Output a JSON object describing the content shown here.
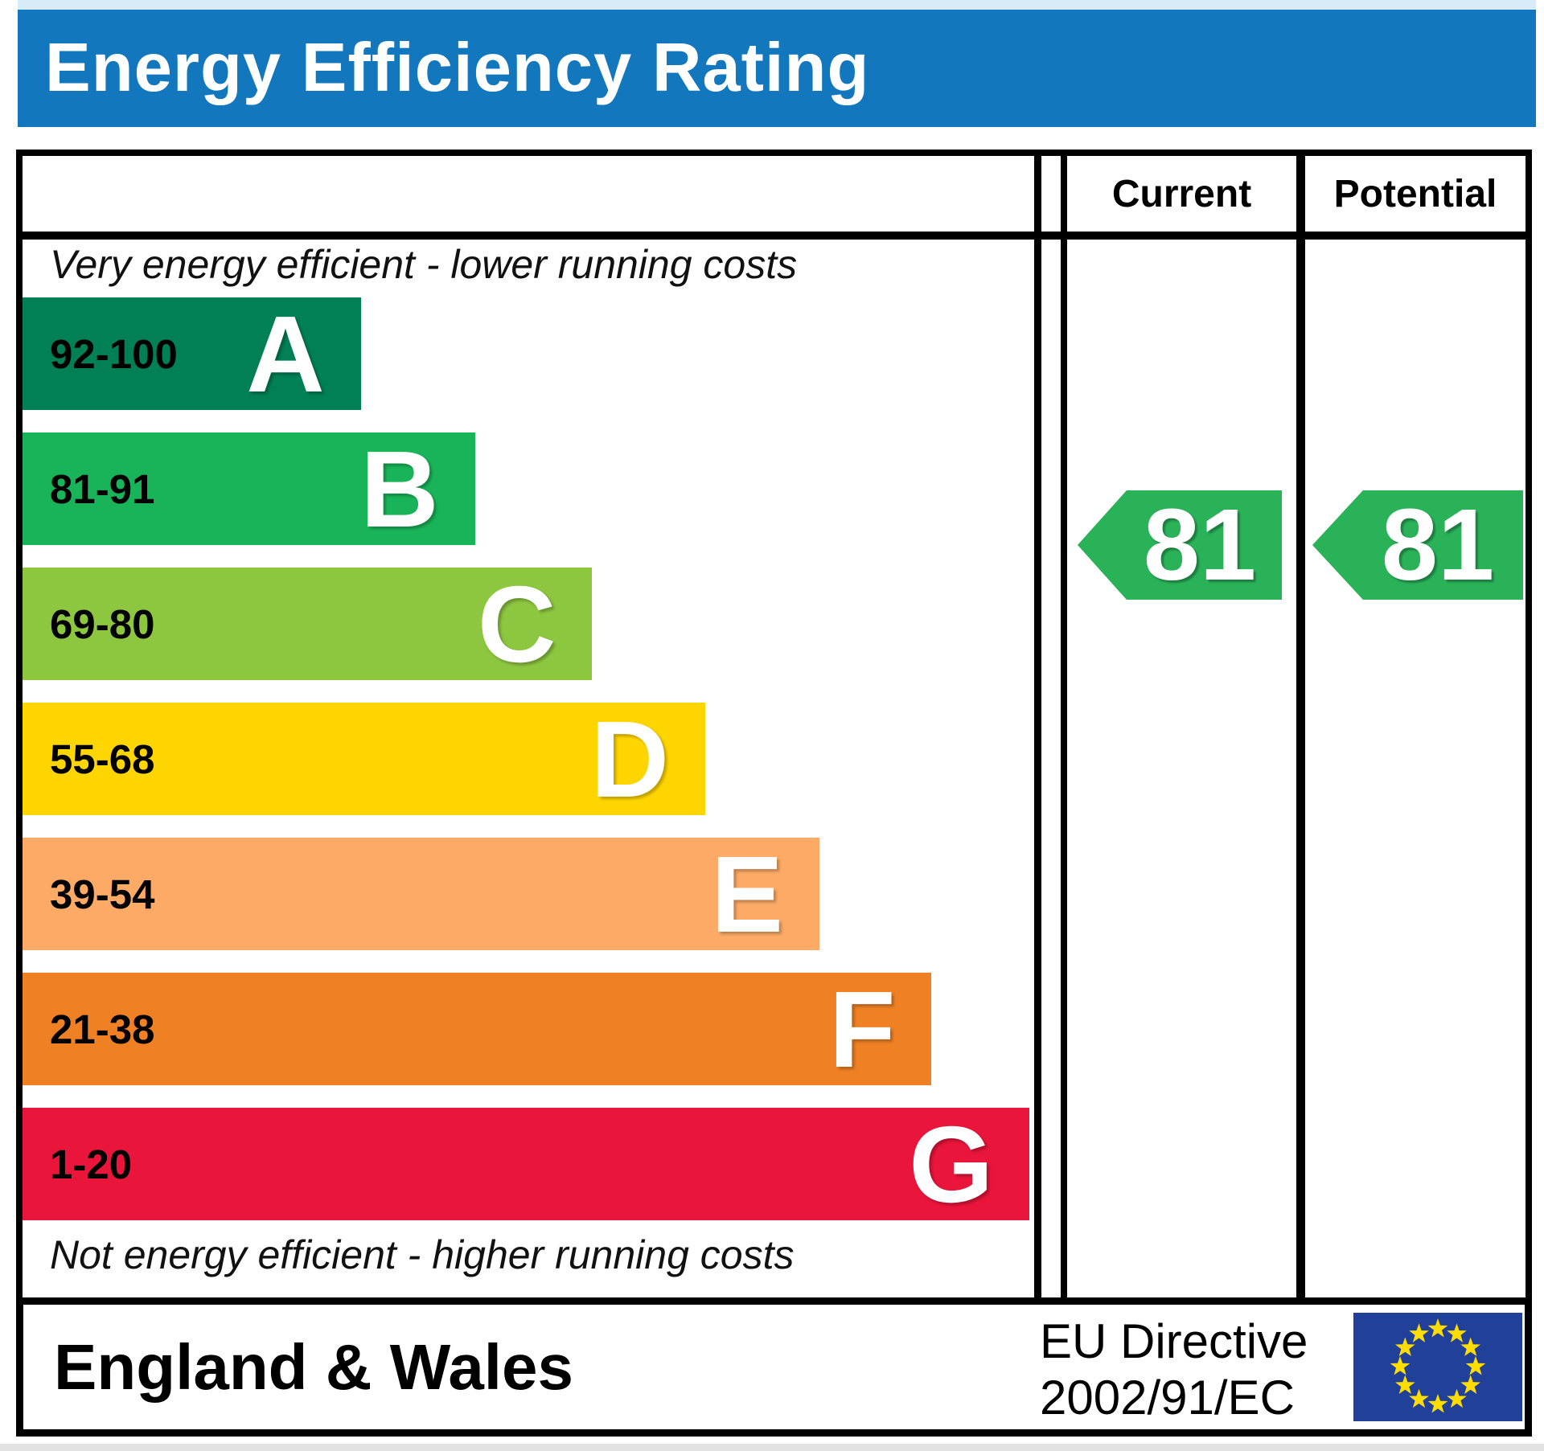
{
  "page": {
    "title_bar": "Energy Efficiency Rating"
  },
  "table": {
    "columns": {
      "current_label": "Current",
      "potential_label": "Potential"
    },
    "top_note": "Very energy efficient - lower running costs",
    "bottom_note": "Not energy efficient - higher running costs"
  },
  "footer": {
    "region_label": "England & Wales",
    "directive_line1": "EU Directive",
    "directive_line2": "2002/91/EC",
    "eu_flag": {
      "background": "#21409a",
      "star_color": "#ffdd00",
      "star_count": 12
    }
  },
  "colors": {
    "title_bar_blue": "#1277bd",
    "border_black": "#000000",
    "arrow_green": "#2ab259"
  },
  "chart_data": {
    "type": "bar",
    "orientation": "horizontal",
    "title": "Energy Efficiency Rating",
    "scale_range": [
      1,
      100
    ],
    "legend_position": "none",
    "grid": false,
    "bands": [
      {
        "letter": "A",
        "range": "92-100",
        "range_min": 92,
        "range_max": 100,
        "color": "#008054",
        "width_pct": 33.5
      },
      {
        "letter": "B",
        "range": "81-91",
        "range_min": 81,
        "range_max": 91,
        "color": "#19b459",
        "width_pct": 44.8
      },
      {
        "letter": "C",
        "range": "69-80",
        "range_min": 69,
        "range_max": 80,
        "color": "#8dc63f",
        "width_pct": 56.4
      },
      {
        "letter": "D",
        "range": "55-68",
        "range_min": 55,
        "range_max": 68,
        "color": "#ffd500",
        "width_pct": 67.6
      },
      {
        "letter": "E",
        "range": "39-54",
        "range_min": 39,
        "range_max": 54,
        "color": "#fcaa65",
        "width_pct": 78.9
      },
      {
        "letter": "F",
        "range": "21-38",
        "range_min": 21,
        "range_max": 38,
        "color": "#ef8023",
        "width_pct": 90.0
      },
      {
        "letter": "G",
        "range": "1-20",
        "range_min": 1,
        "range_max": 20,
        "color": "#e9153b",
        "width_pct": 99.7
      }
    ],
    "markers": {
      "current": {
        "label": "Current",
        "value": 81,
        "band": "B",
        "color": "#2ab259"
      },
      "potential": {
        "label": "Potential",
        "value": 81,
        "band": "B",
        "color": "#2ab259"
      }
    }
  }
}
